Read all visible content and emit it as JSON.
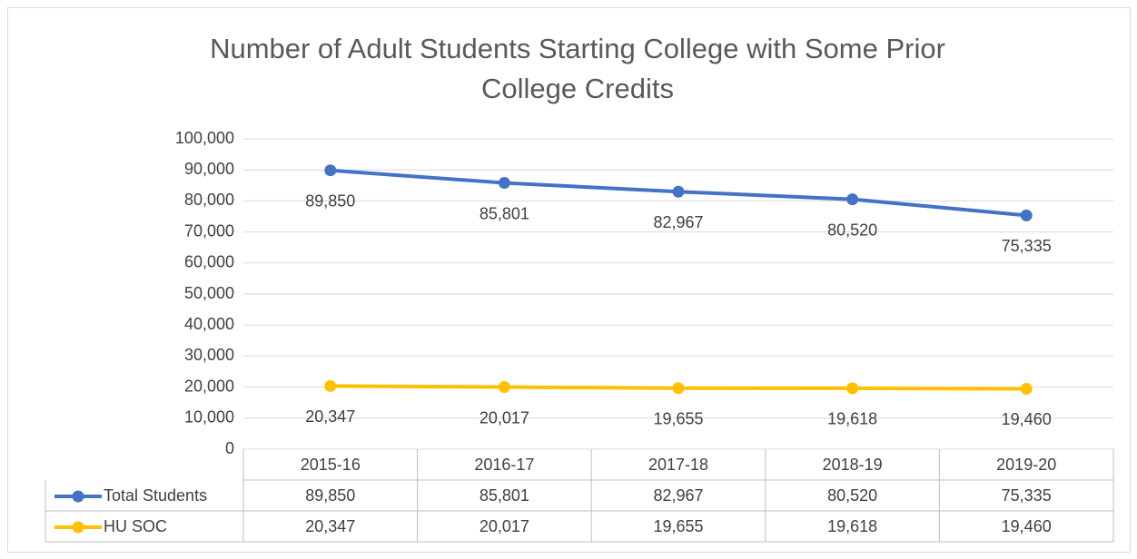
{
  "chart_data": {
    "type": "line",
    "title": "Number of Adult Students Starting College with Some Prior College Credits",
    "categories": [
      "2015-16",
      "2016-17",
      "2017-18",
      "2018-19",
      "2019-20"
    ],
    "series": [
      {
        "name": "Total Students",
        "color": "#4472c4",
        "values": [
          89850,
          85801,
          82967,
          80520,
          75335
        ],
        "value_labels": [
          "89,850",
          "85,801",
          "82,967",
          "80,520",
          "75,335"
        ]
      },
      {
        "name": "HU SOC",
        "color": "#ffc000",
        "values": [
          20347,
          20017,
          19655,
          19618,
          19460
        ],
        "value_labels": [
          "20,347",
          "20,017",
          "19,655",
          "19,618",
          "19,460"
        ]
      }
    ],
    "ylim": [
      0,
      100000
    ],
    "yticks": [
      0,
      {
        "value": 10000,
        "label": "10,000"
      },
      {
        "value": 20000,
        "label": "20,000"
      },
      {
        "value": 30000,
        "label": "30,000"
      },
      {
        "value": 40000,
        "label": "40,000"
      },
      {
        "value": 50000,
        "label": "50,000"
      },
      {
        "value": 60000,
        "label": "60,000"
      },
      {
        "value": 70000,
        "label": "70,000"
      },
      {
        "value": 80000,
        "label": "80,000"
      },
      {
        "value": 90000,
        "label": "90,000"
      },
      {
        "value": 100000,
        "label": "100,000"
      }
    ],
    "grid": true
  }
}
